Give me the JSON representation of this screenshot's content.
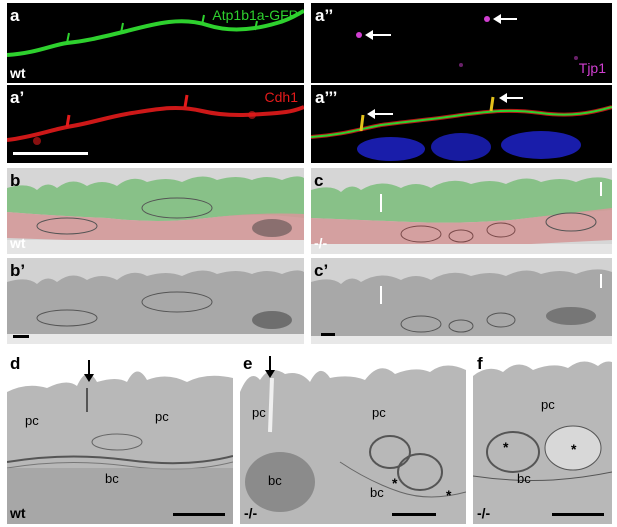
{
  "colors": {
    "gfp": "#2ed12e",
    "cdh1": "#e31b1b",
    "tjp1": "#d13fd1",
    "nuclei": "#1d22c8",
    "white": "#ffffff",
    "black": "#000000"
  },
  "panels": {
    "a": {
      "label": "a",
      "stain": "Atp1b1a-GFP",
      "genotype": "wt"
    },
    "a1": {
      "label": "a’",
      "stain": "Cdh1"
    },
    "a2": {
      "label": "a’’",
      "stain": "Tjp1"
    },
    "a3": {
      "label": "a’’’"
    },
    "b": {
      "label": "b",
      "genotype": "wt"
    },
    "b1": {
      "label": "b’"
    },
    "c": {
      "label": "c",
      "genotype": "-/-"
    },
    "c1": {
      "label": "c’"
    },
    "d": {
      "label": "d",
      "genotype": "wt",
      "annotations": [
        "pc",
        "pc",
        "bc"
      ]
    },
    "e": {
      "label": "e",
      "genotype": "-/-",
      "annotations": [
        "pc",
        "pc",
        "bc",
        "bc"
      ],
      "stars": [
        "*",
        "*"
      ]
    },
    "f": {
      "label": "f",
      "genotype": "-/-",
      "annotations": [
        "pc",
        "bc"
      ],
      "stars": [
        "*",
        "*"
      ]
    }
  }
}
